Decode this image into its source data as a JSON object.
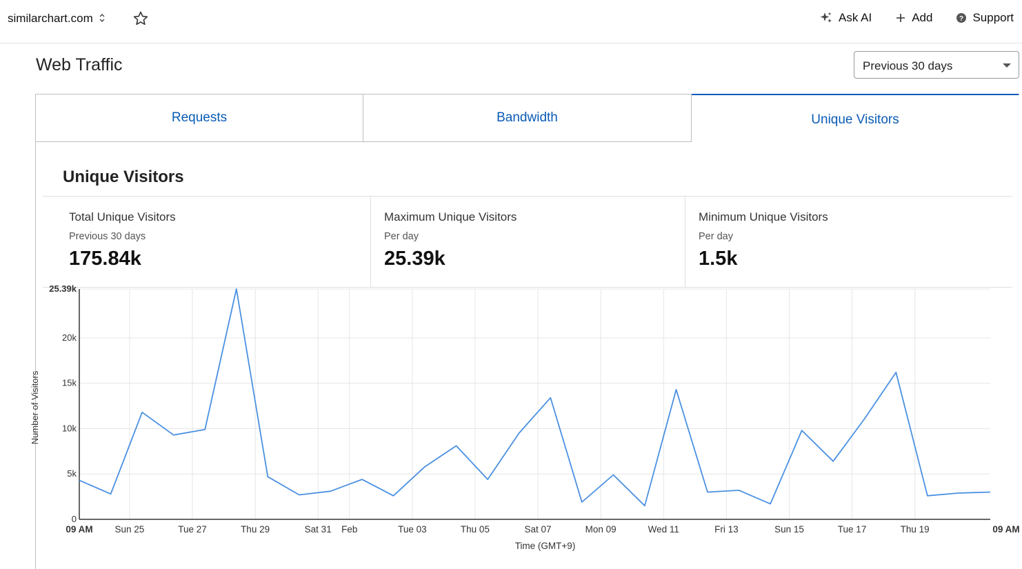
{
  "topbar": {
    "site": "similarchart.com",
    "actions": {
      "ask_ai": "Ask AI",
      "add": "Add",
      "support": "Support"
    }
  },
  "header": {
    "title": "Web Traffic",
    "range": "Previous 30 days"
  },
  "tabs": [
    "Requests",
    "Bandwidth",
    "Unique Visitors"
  ],
  "section": {
    "title": "Unique Visitors"
  },
  "stats": [
    {
      "label": "Total Unique Visitors",
      "sub": "Previous 30 days",
      "value": "175.84k"
    },
    {
      "label": "Maximum Unique Visitors",
      "sub": "Per day",
      "value": "25.39k"
    },
    {
      "label": "Minimum Unique Visitors",
      "sub": "Per day",
      "value": "1.5k"
    }
  ],
  "colors": {
    "accent": "#0a5bb5",
    "line": "#4a90e2"
  },
  "chart_data": {
    "type": "line",
    "xlabel": "Time (GMT+9)",
    "ylabel": "Number of Visitors",
    "ylim": [
      0,
      25390
    ],
    "y_ticks": [
      "0",
      "5k",
      "10k",
      "15k",
      "20k",
      "25.39k"
    ],
    "x_ticks": [
      "09 AM",
      "Sun 25",
      "Tue 27",
      "Thu 29",
      "Sat 31",
      "Feb",
      "Tue 03",
      "Thu 05",
      "Sat 07",
      "Mon 09",
      "Wed 11",
      "Fri 13",
      "Sun 15",
      "Tue 17",
      "Thu 19",
      "09 AM"
    ],
    "grid": true,
    "series": [
      {
        "values": [
          4300,
          2800,
          11800,
          9300,
          9900,
          25390,
          4700,
          2700,
          3100,
          4400,
          2600,
          5800,
          8100,
          4400,
          9500,
          13400,
          1900,
          4900,
          1500,
          14300,
          3000,
          3200,
          1700,
          9800,
          6400,
          11100,
          16200,
          2600,
          2900,
          3000
        ]
      }
    ]
  }
}
